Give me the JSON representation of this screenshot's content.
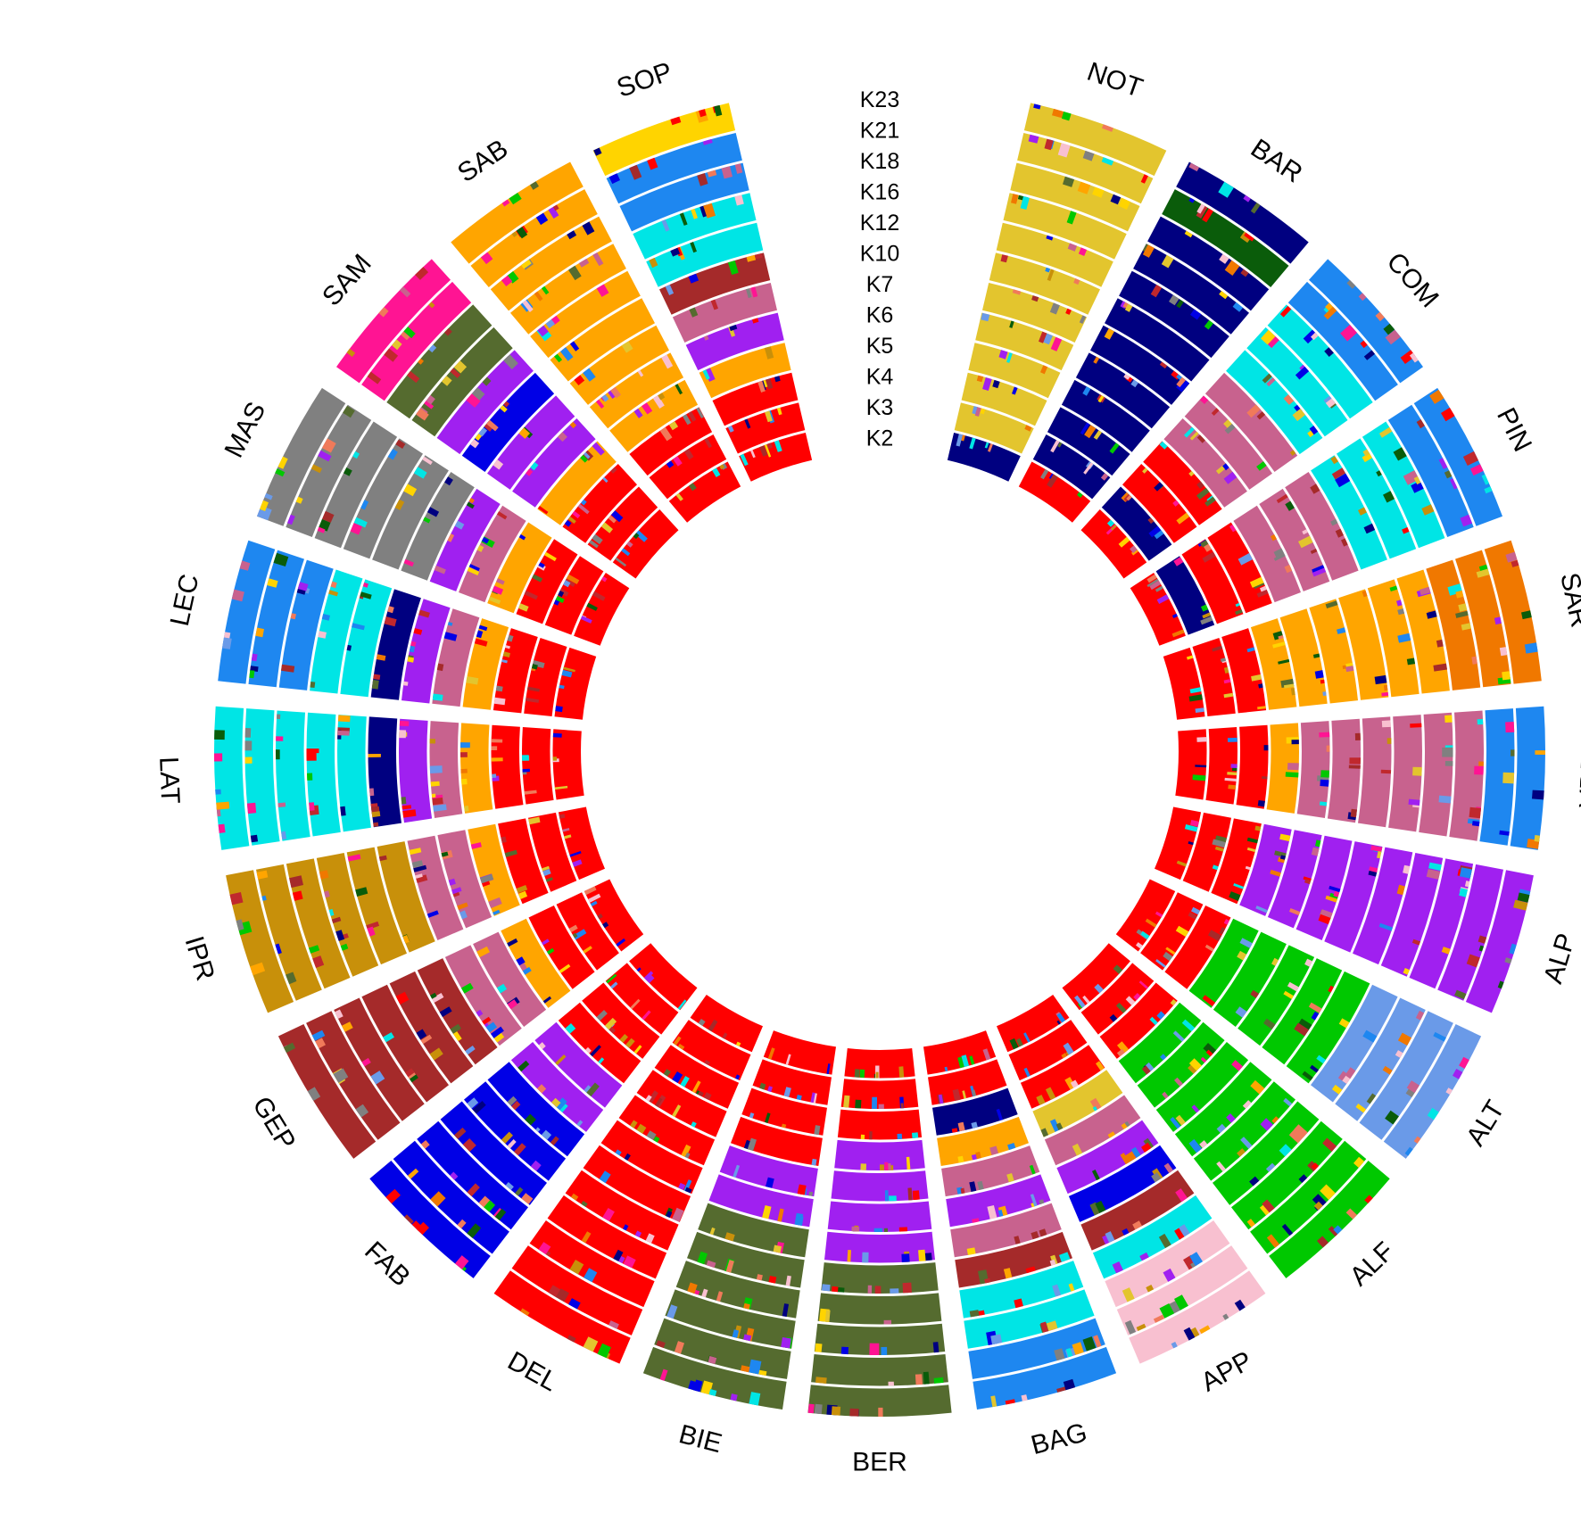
{
  "chart_data": {
    "type": "circular-admixture",
    "title": "",
    "legend": "none",
    "k_levels": [
      "K2",
      "K3",
      "K4",
      "K5",
      "K6",
      "K7",
      "K10",
      "K12",
      "K16",
      "K18",
      "K21",
      "K23"
    ],
    "populations": [
      "NOT",
      "BAR",
      "COM",
      "PIN",
      "SAR",
      "VDB",
      "ALP",
      "ALT",
      "ALF",
      "APP",
      "BAG",
      "BER",
      "BIE",
      "DEL",
      "FAB",
      "GEP",
      "IPR",
      "LAT",
      "LEC",
      "MAS",
      "SAM",
      "SAB",
      "SOP"
    ],
    "cluster_colors": {
      "red": "#ff0000",
      "navy": "#000080",
      "yellow": "#e3c52e",
      "salmon": "#f07a5a",
      "dark_green": "#0a5c0a",
      "crimson": "#c0282d",
      "dodger_blue": "#1e87f0",
      "mauve": "#c8628e",
      "orange": "#ffa500",
      "dark_orange": "#f07800",
      "purple": "#a020f0",
      "green": "#00c800",
      "cornflower": "#6a9ae8",
      "pink": "#f8c0d0",
      "cyan": "#00e5e5",
      "olive": "#556b2f",
      "blue": "#0000e6",
      "brown": "#a52a2a",
      "goldenrod": "#c8900a",
      "gray": "#808080",
      "magenta": "#ff1493",
      "gold": "#ffd400"
    },
    "dominant_cluster": [
      [
        "navy",
        "yellow",
        "yellow",
        "yellow",
        "yellow",
        "yellow",
        "yellow",
        "yellow",
        "yellow",
        "yellow",
        "yellow",
        "yellow"
      ],
      [
        "red",
        "navy",
        "navy",
        "navy",
        "navy",
        "navy",
        "navy",
        "navy",
        "navy",
        "navy",
        "dark_green",
        "navy"
      ],
      [
        "red",
        "navy",
        "red",
        "red",
        "mauve",
        "mauve",
        "mauve",
        "cyan",
        "cyan",
        "cyan",
        "dodger_blue",
        "dodger_blue"
      ],
      [
        "red",
        "navy",
        "red",
        "red",
        "mauve",
        "mauve",
        "mauve",
        "cyan",
        "cyan",
        "cyan",
        "dodger_blue",
        "dodger_blue"
      ],
      [
        "red",
        "red",
        "red",
        "orange",
        "orange",
        "orange",
        "orange",
        "orange",
        "orange",
        "dark_orange",
        "dark_orange",
        "dark_orange"
      ],
      [
        "red",
        "red",
        "red",
        "orange",
        "mauve",
        "mauve",
        "mauve",
        "mauve",
        "mauve",
        "mauve",
        "dodger_blue",
        "dodger_blue"
      ],
      [
        "red",
        "red",
        "red",
        "purple",
        "purple",
        "purple",
        "purple",
        "purple",
        "purple",
        "purple",
        "purple",
        "purple"
      ],
      [
        "red",
        "red",
        "red",
        "green",
        "green",
        "green",
        "green",
        "green",
        "cornflower",
        "cornflower",
        "cornflower",
        "cornflower"
      ],
      [
        "red",
        "red",
        "red",
        "green",
        "green",
        "green",
        "green",
        "green",
        "green",
        "green",
        "green",
        "green"
      ],
      [
        "red",
        "red",
        "red",
        "yellow",
        "mauve",
        "purple",
        "blue",
        "brown",
        "cyan",
        "pink",
        "pink",
        "pink"
      ],
      [
        "red",
        "red",
        "navy",
        "orange",
        "mauve",
        "purple",
        "mauve",
        "brown",
        "cyan",
        "cyan",
        "dodger_blue",
        "dodger_blue"
      ],
      [
        "red",
        "red",
        "red",
        "purple",
        "purple",
        "purple",
        "purple",
        "olive",
        "olive",
        "olive",
        "olive",
        "olive"
      ],
      [
        "red",
        "red",
        "red",
        "red",
        "purple",
        "purple",
        "olive",
        "olive",
        "olive",
        "olive",
        "olive",
        "olive"
      ],
      [
        "red",
        "red",
        "red",
        "red",
        "red",
        "red",
        "red",
        "red",
        "red",
        "red",
        "red",
        "red"
      ],
      [
        "red",
        "red",
        "red",
        "red",
        "purple",
        "purple",
        "blue",
        "blue",
        "blue",
        "blue",
        "blue",
        "blue"
      ],
      [
        "red",
        "red",
        "red",
        "orange",
        "mauve",
        "mauve",
        "brown",
        "brown",
        "brown",
        "brown",
        "brown",
        "brown"
      ],
      [
        "red",
        "red",
        "red",
        "orange",
        "mauve",
        "mauve",
        "goldenrod",
        "goldenrod",
        "goldenrod",
        "goldenrod",
        "goldenrod",
        "goldenrod"
      ],
      [
        "red",
        "red",
        "red",
        "orange",
        "mauve",
        "purple",
        "navy",
        "cyan",
        "cyan",
        "cyan",
        "cyan",
        "cyan"
      ],
      [
        "red",
        "red",
        "red",
        "orange",
        "mauve",
        "purple",
        "navy",
        "cyan",
        "cyan",
        "dodger_blue",
        "dodger_blue",
        "dodger_blue"
      ],
      [
        "red",
        "red",
        "red",
        "orange",
        "mauve",
        "purple",
        "gray",
        "gray",
        "gray",
        "gray",
        "gray",
        "gray"
      ],
      [
        "red",
        "red",
        "red",
        "orange",
        "purple",
        "purple",
        "blue",
        "purple",
        "olive",
        "olive",
        "magenta",
        "magenta"
      ],
      [
        "red",
        "red",
        "red",
        "orange",
        "orange",
        "orange",
        "orange",
        "orange",
        "orange",
        "orange",
        "orange",
        "orange"
      ],
      [
        "red",
        "red",
        "red",
        "orange",
        "purple",
        "mauve",
        "brown",
        "cyan",
        "cyan",
        "dodger_blue",
        "dodger_blue",
        "gold"
      ]
    ]
  }
}
